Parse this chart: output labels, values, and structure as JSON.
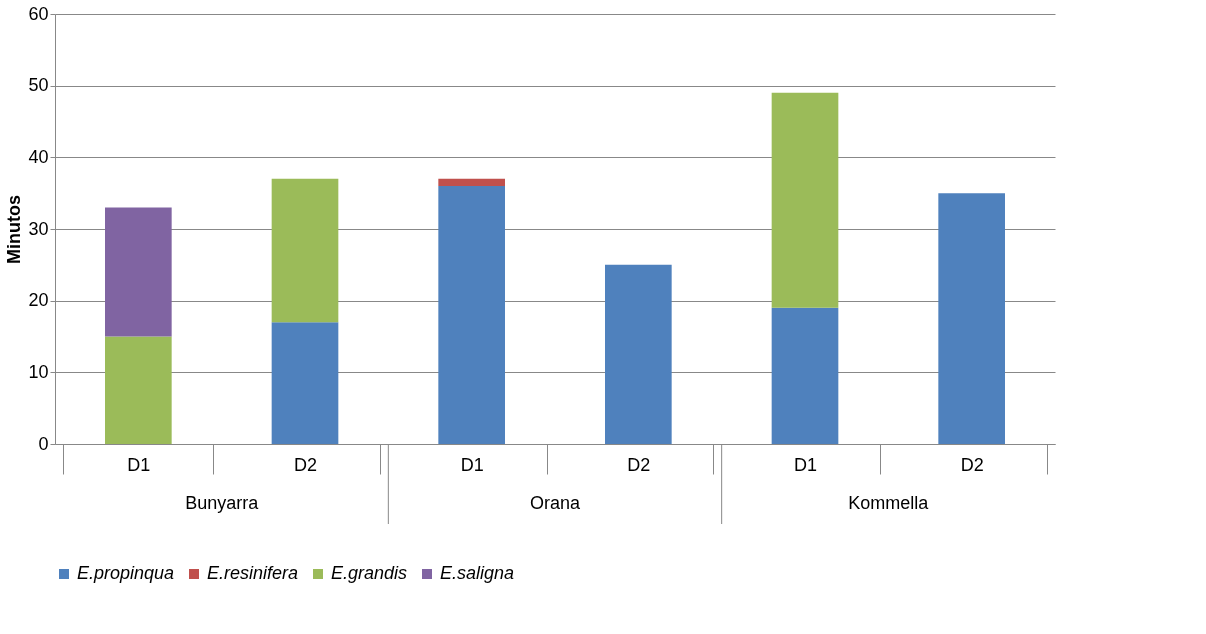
{
  "chart_data": {
    "type": "bar",
    "stacked": true,
    "ylabel": "Minutos",
    "categories": [
      "D1",
      "D2",
      "D1",
      "D2",
      "D1",
      "D2"
    ],
    "annotations": [
      "Bunyarra",
      "Orana",
      "Kommella"
    ],
    "series": [
      {
        "name": "E.propinqua",
        "color": "#4f81bd",
        "values": [
          null,
          17,
          36,
          25,
          19,
          35
        ]
      },
      {
        "name": "E.resinifera",
        "color": "#c0504d",
        "values": [
          null,
          null,
          1,
          null,
          null,
          null
        ]
      },
      {
        "name": "E.grandis",
        "color": "#9bbb59",
        "values": [
          15,
          20,
          null,
          null,
          30,
          null
        ]
      },
      {
        "name": "E.saligna",
        "color": "#8064a2",
        "values": [
          18,
          null,
          null,
          null,
          null,
          null
        ]
      }
    ],
    "ylim": [
      0,
      60
    ],
    "yticks": [
      0,
      10,
      20,
      30,
      40,
      50,
      60
    ],
    "grid": "y",
    "legend": "bottom"
  }
}
